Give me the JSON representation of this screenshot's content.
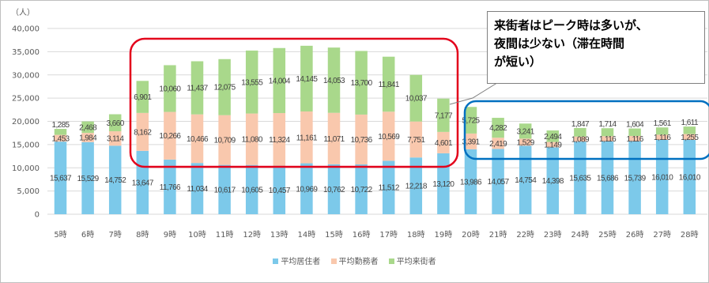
{
  "chart_data": {
    "type": "bar",
    "stacked": true,
    "unit_label": "（人）",
    "ylim": [
      0,
      40000
    ],
    "yticks": [
      "0",
      "5,000",
      "10,000",
      "15,000",
      "20,000",
      "25,000",
      "30,000",
      "35,000",
      "40,000"
    ],
    "grid": true,
    "legend_position": "bottom",
    "categories": [
      "5時",
      "6時",
      "7時",
      "8時",
      "9時",
      "10時",
      "11時",
      "12時",
      "13時",
      "14時",
      "15時",
      "16時",
      "17時",
      "18時",
      "19時",
      "20時",
      "21時",
      "22時",
      "23時",
      "24時",
      "25時",
      "26時",
      "27時",
      "28時"
    ],
    "series": [
      {
        "name": "平均居住者",
        "color": "#7cc9ea",
        "values": [
          15637,
          15529,
          14752,
          13647,
          11766,
          11034,
          10617,
          10605,
          10457,
          10969,
          10762,
          10722,
          11512,
          12218,
          13120,
          13986,
          14057,
          14754,
          14398,
          15635,
          15686,
          15739,
          16010,
          16010
        ]
      },
      {
        "name": "平均勤務者",
        "color": "#f9c8ad",
        "values": [
          1453,
          1984,
          3114,
          8162,
          10266,
          10466,
          10709,
          11080,
          11324,
          11161,
          11071,
          10736,
          10569,
          7751,
          4601,
          3391,
          2419,
          1529,
          1149,
          1089,
          1116,
          1116,
          1116,
          1255
        ]
      },
      {
        "name": "平均来街者",
        "color": "#a9d88b",
        "values": [
          1285,
          2468,
          3660,
          6901,
          10060,
          11437,
          12075,
          13555,
          14004,
          14145,
          14053,
          13700,
          11841,
          10037,
          7177,
          5725,
          4282,
          3241,
          2494,
          1847,
          1714,
          1604,
          1561,
          1611
        ]
      }
    ],
    "annotations": [
      {
        "text_lines": [
          "来街者はピーク時は多いが、",
          "夜間は少ない（滞在時間",
          "が短い）"
        ]
      }
    ],
    "highlight_colors": {
      "peak_box": "#e3001b",
      "night_box": "#0070c0"
    }
  }
}
